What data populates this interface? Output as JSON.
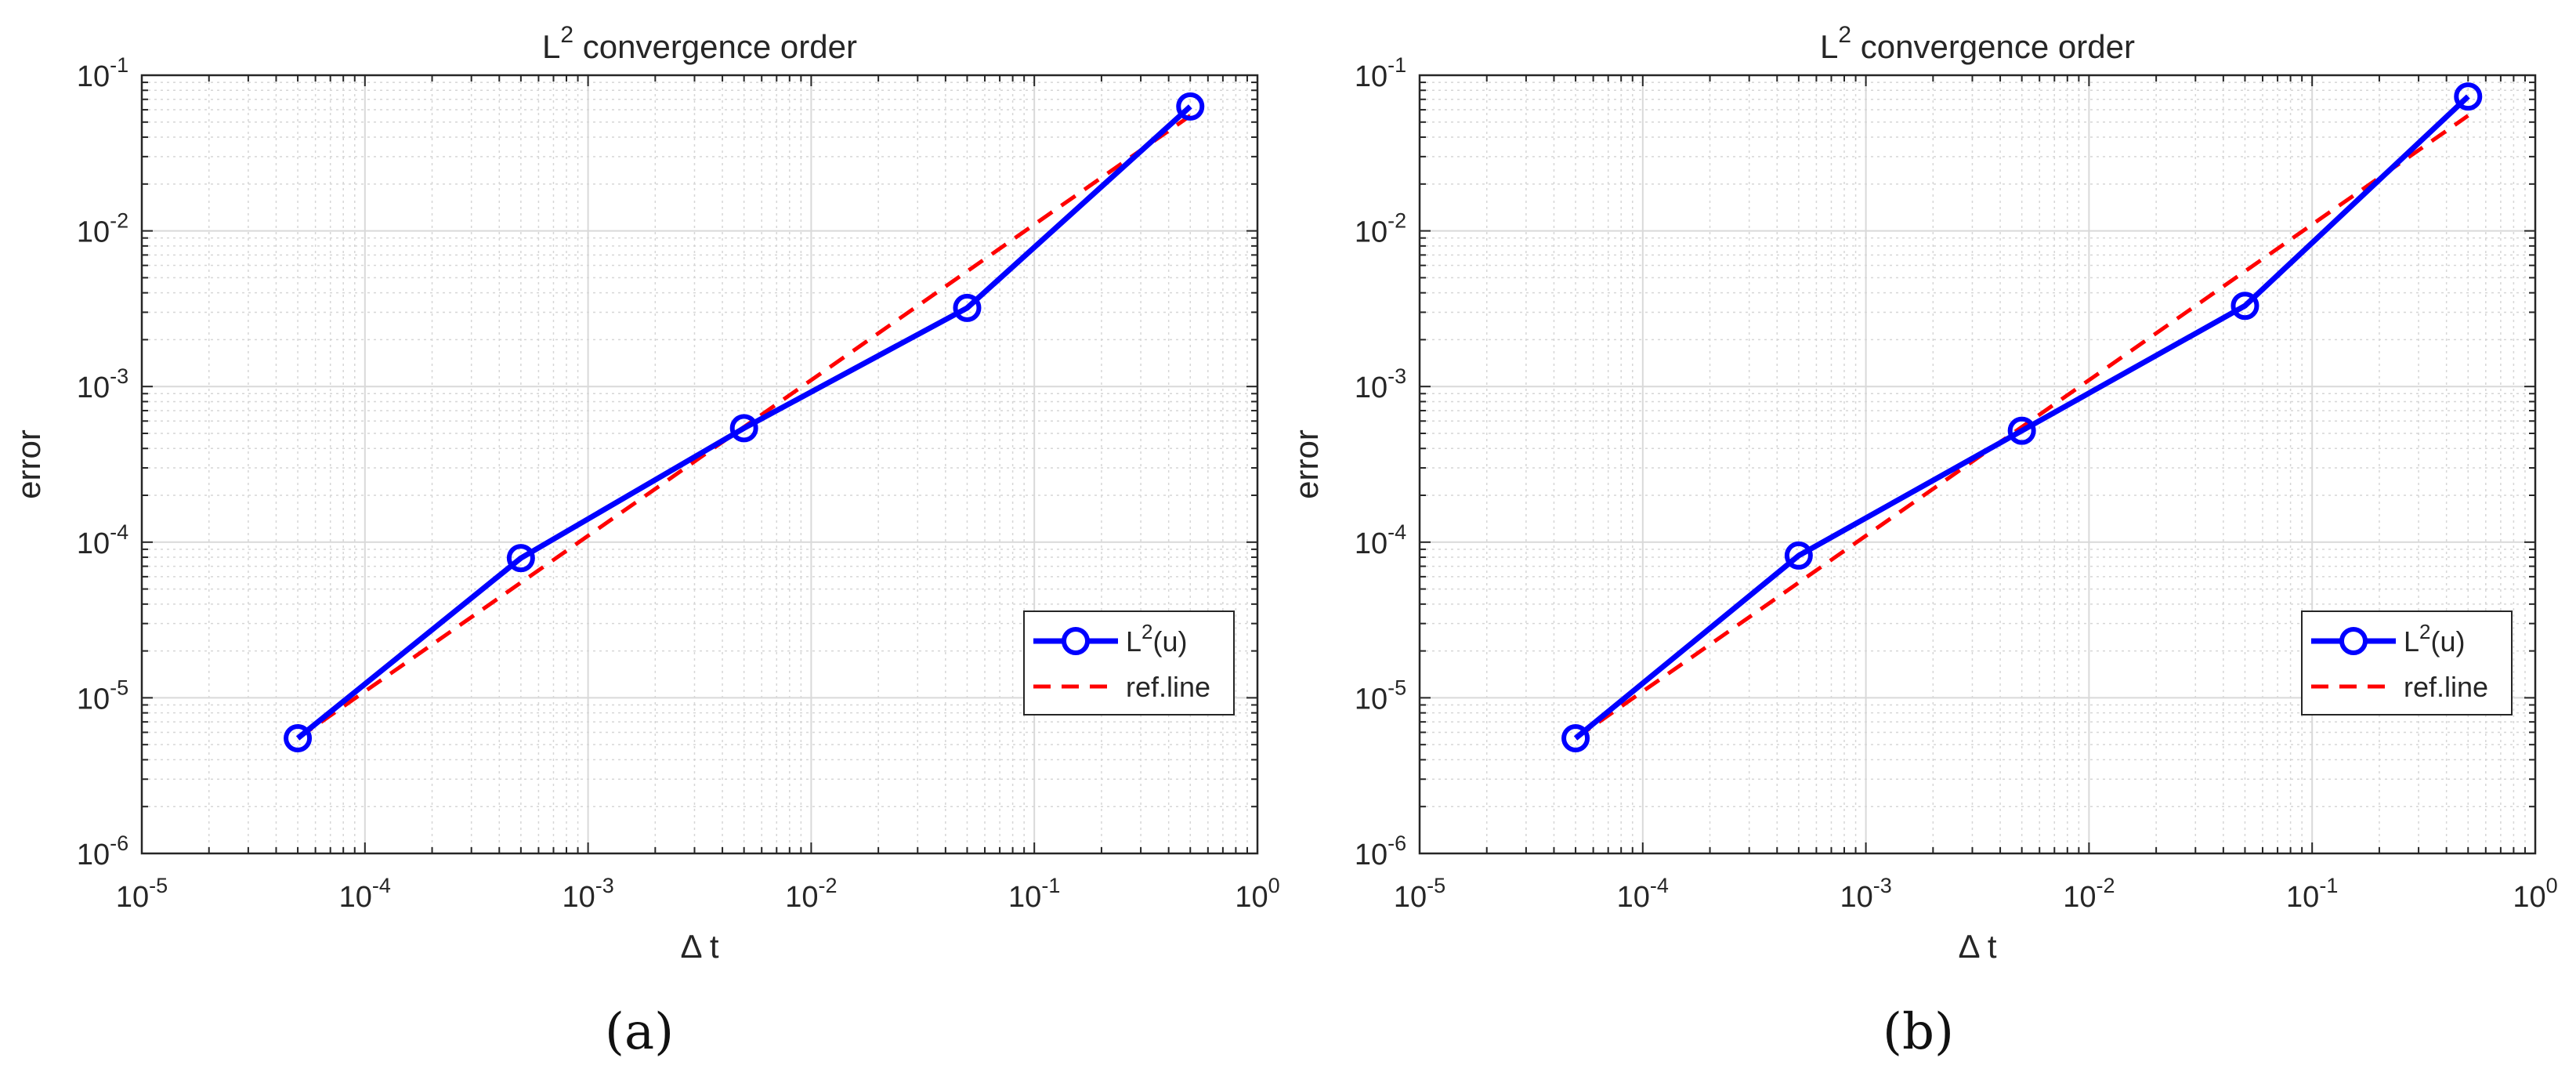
{
  "chart_data": [
    {
      "type": "line",
      "title": "L2 convergence order",
      "xlabel": "Δ t",
      "ylabel": "error",
      "xscale": "log",
      "yscale": "log",
      "xlim": [
        1e-05,
        1
      ],
      "ylim": [
        1e-06,
        0.1
      ],
      "xticks": [
        1e-05,
        0.0001,
        0.001,
        0.01,
        0.1,
        1
      ],
      "yticks": [
        1e-06,
        1e-05,
        0.0001,
        0.001,
        0.01,
        0.1
      ],
      "xtick_labels": [
        [
          "10",
          "-5"
        ],
        [
          "10",
          "-4"
        ],
        [
          "10",
          "-3"
        ],
        [
          "10",
          "-2"
        ],
        [
          "10",
          "-1"
        ],
        [
          "10",
          "0"
        ]
      ],
      "ytick_labels": [
        [
          "10",
          "-6"
        ],
        [
          "10",
          "-5"
        ],
        [
          "10",
          "-4"
        ],
        [
          "10",
          "-3"
        ],
        [
          "10",
          "-2"
        ],
        [
          "10",
          "-1"
        ]
      ],
      "grid": true,
      "legend_position": "lower-right",
      "caption": "(a)",
      "series": [
        {
          "name": "L2(u)",
          "color": "#0000ff",
          "style": "solid",
          "marker": "circle",
          "x": [
            5e-05,
            0.0005,
            0.005,
            0.05,
            0.5
          ],
          "y": [
            5.5e-06,
            7.9e-05,
            0.00054,
            0.0032,
            0.063
          ]
        },
        {
          "name": "ref.line",
          "color": "#ff0000",
          "style": "dashed",
          "marker": "none",
          "x": [
            5e-05,
            0.0005,
            0.005,
            0.05,
            0.5
          ],
          "y": [
            5.5e-06,
            5.5e-05,
            0.00055,
            0.0055,
            0.055
          ]
        }
      ]
    },
    {
      "type": "line",
      "title": "L2 convergence order",
      "xlabel": "Δ t",
      "ylabel": "error",
      "xscale": "log",
      "yscale": "log",
      "xlim": [
        1e-05,
        1
      ],
      "ylim": [
        1e-06,
        0.1
      ],
      "xticks": [
        1e-05,
        0.0001,
        0.001,
        0.01,
        0.1,
        1
      ],
      "yticks": [
        1e-06,
        1e-05,
        0.0001,
        0.001,
        0.01,
        0.1
      ],
      "xtick_labels": [
        [
          "10",
          "-5"
        ],
        [
          "10",
          "-4"
        ],
        [
          "10",
          "-3"
        ],
        [
          "10",
          "-2"
        ],
        [
          "10",
          "-1"
        ],
        [
          "10",
          "0"
        ]
      ],
      "ytick_labels": [
        [
          "10",
          "-6"
        ],
        [
          "10",
          "-5"
        ],
        [
          "10",
          "-4"
        ],
        [
          "10",
          "-3"
        ],
        [
          "10",
          "-2"
        ],
        [
          "10",
          "-1"
        ]
      ],
      "grid": true,
      "legend_position": "lower-right",
      "caption": "(b)",
      "series": [
        {
          "name": "L2(u)",
          "color": "#0000ff",
          "style": "solid",
          "marker": "circle",
          "x": [
            5e-05,
            0.0005,
            0.005,
            0.05,
            0.5
          ],
          "y": [
            5.5e-06,
            8.2e-05,
            0.00052,
            0.0033,
            0.073
          ]
        },
        {
          "name": "ref.line",
          "color": "#ff0000",
          "style": "dashed",
          "marker": "none",
          "x": [
            5e-05,
            0.0005,
            0.005,
            0.05,
            0.5
          ],
          "y": [
            5.5e-06,
            5.5e-05,
            0.00055,
            0.0055,
            0.055
          ]
        }
      ]
    }
  ]
}
